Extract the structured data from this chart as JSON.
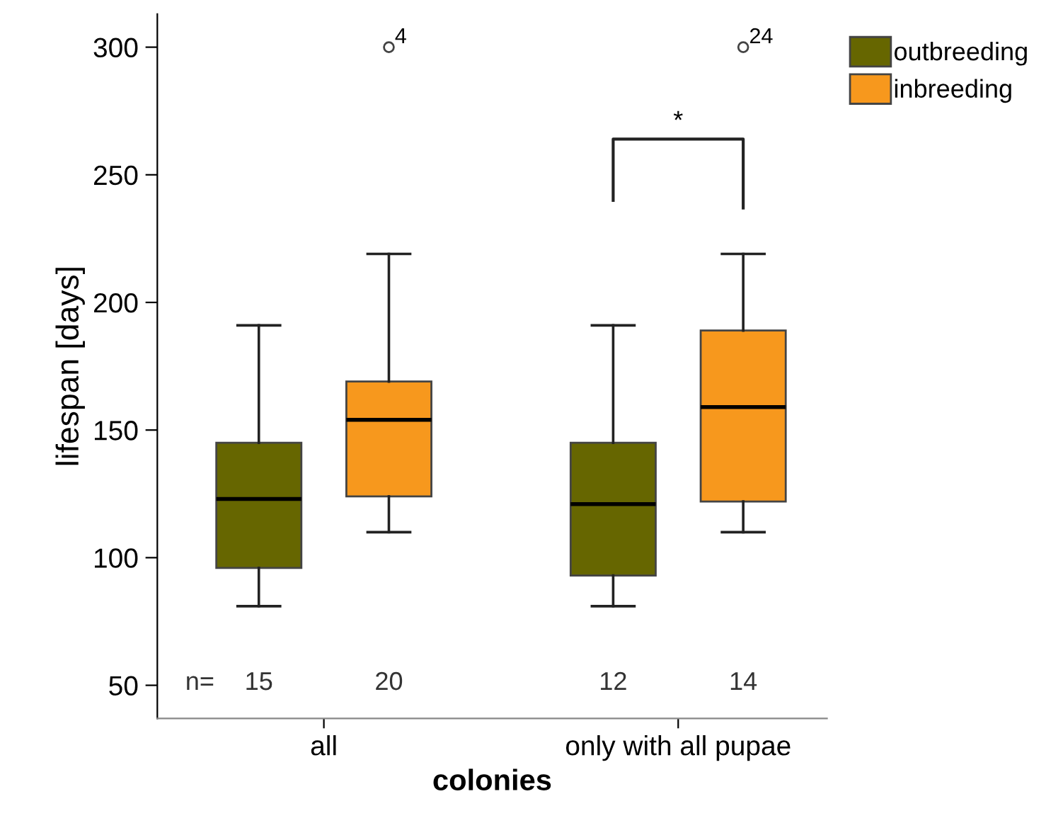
{
  "chart_data": {
    "type": "box",
    "xlabel": "colonies",
    "ylabel": "lifespan [days]",
    "categories": [
      "all",
      "only with all pupae"
    ],
    "series": [
      {
        "name": "outbreeding",
        "color": "#666600",
        "boxes": [
          {
            "low": 81,
            "q1": 96,
            "median": 123,
            "q3": 145,
            "high": 191
          },
          {
            "low": 81,
            "q1": 93,
            "median": 121,
            "q3": 145,
            "high": 191
          }
        ]
      },
      {
        "name": "inbreeding",
        "color": "#f7981d",
        "boxes": [
          {
            "low": 110,
            "q1": 124,
            "median": 154,
            "q3": 169,
            "high": 219,
            "outliers": [
              300
            ]
          },
          {
            "low": 110,
            "q1": 122,
            "median": 159,
            "q3": 189,
            "high": 219,
            "outliers": [
              300
            ]
          }
        ]
      }
    ],
    "ylim": [
      37,
      313
    ],
    "yticks": [
      50,
      100,
      150,
      200,
      250,
      300
    ],
    "annotations": [
      "n=",
      "15",
      "20",
      "12",
      "14",
      "4",
      "24",
      "*"
    ],
    "legend": "top right",
    "grid": false
  }
}
